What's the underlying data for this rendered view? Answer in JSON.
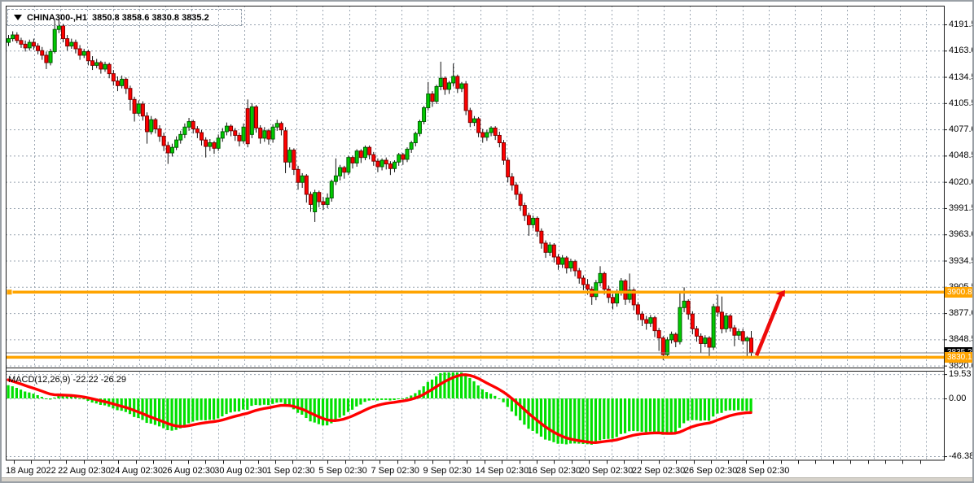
{
  "header": {
    "symbol_timeframe": "CHINA300-,H1",
    "ohlc": "3850.8 3858.6 3830.8 3835.2"
  },
  "macd_panel": {
    "label": "MACD(12,26,9)",
    "main_value": "-22.22",
    "signal_value": "-26.29"
  },
  "chart_data": {
    "type": "candlestick",
    "symbol": "CHINA300-",
    "timeframe": "H1",
    "current_bar": {
      "open": 3850.8,
      "high": 3858.6,
      "low": 3830.8,
      "close": 3835.2
    },
    "price_axis": {
      "labels": [
        "4191.5",
        "4163.0",
        "4134.5",
        "4105.5",
        "4077.0",
        "4048.5",
        "4020.0",
        "3991.5",
        "3963.0",
        "3934.5",
        "3905.5",
        "3877.0",
        "3848.5",
        "3820.0"
      ],
      "top_value": 4191.5,
      "step": 28.5
    },
    "time_axis": {
      "labels": [
        "18 Aug 2022",
        "22 Aug 02:30",
        "24 Aug 02:30",
        "26 Aug 02:30",
        "30 Aug 02:30",
        "1 Sep 02:30",
        "5 Sep 02:30",
        "7 Sep 02:30",
        "9 Sep 02:30",
        "14 Sep 02:30",
        "16 Sep 02:30",
        "20 Sep 02:30",
        "22 Sep 02:30",
        "26 Sep 02:30",
        "28 Sep 02:30"
      ]
    },
    "levels": [
      {
        "name": "resistance",
        "value": 3900.8,
        "label": "3900.8",
        "color": "#ffa400"
      },
      {
        "name": "support",
        "value": 3830.1,
        "label": "3830.1",
        "color": "#ffa400"
      }
    ],
    "last_price": {
      "value": 3835.2,
      "label": "3835.2",
      "color": "#000000"
    },
    "arrow": {
      "from_price": 3832,
      "to_price": 3903,
      "color": "#ee0b0b"
    },
    "macd": {
      "params": [
        12,
        26,
        9
      ],
      "main_value": -22.22,
      "signal_value": -26.29,
      "scale_labels": [
        "19.53",
        "0.00",
        "-46.38"
      ],
      "scale_values": [
        19.53,
        0.0,
        -46.38
      ],
      "histogram_color": "#00e000",
      "signal_color": "#ff0000"
    },
    "colors": {
      "bull": "#00cb00",
      "bull_edge": "#005f00",
      "bear": "#ff0000",
      "bear_edge": "#7e0000",
      "wick": "#111111",
      "grid": "#9aa5b1",
      "level": "#ffa400",
      "arrow": "#ee0b0b",
      "current_price_line": "#808080"
    },
    "candles": [
      [
        4172,
        4180,
        4168,
        4176
      ],
      [
        4176,
        4184,
        4173,
        4180
      ],
      [
        4180,
        4183,
        4171,
        4174
      ],
      [
        4174,
        4177,
        4166,
        4170
      ],
      [
        4170,
        4174,
        4162,
        4166
      ],
      [
        4166,
        4175,
        4163,
        4172
      ],
      [
        4172,
        4176,
        4164,
        4168
      ],
      [
        4168,
        4171,
        4159,
        4163
      ],
      [
        4163,
        4167,
        4153,
        4158
      ],
      [
        4158,
        4162,
        4143,
        4150
      ],
      [
        4150,
        4165,
        4147,
        4162
      ],
      [
        4162,
        4196,
        4160,
        4186
      ],
      [
        4186,
        4197,
        4182,
        4190
      ],
      [
        4190,
        4192,
        4172,
        4176
      ],
      [
        4176,
        4180,
        4163,
        4168
      ],
      [
        4168,
        4176,
        4165,
        4172
      ],
      [
        4172,
        4175,
        4160,
        4165
      ],
      [
        4165,
        4169,
        4153,
        4158
      ],
      [
        4158,
        4165,
        4155,
        4162
      ],
      [
        4162,
        4164,
        4147,
        4152
      ],
      [
        4152,
        4157,
        4142,
        4147
      ],
      [
        4147,
        4154,
        4144,
        4150
      ],
      [
        4150,
        4152,
        4138,
        4143
      ],
      [
        4143,
        4151,
        4140,
        4148
      ],
      [
        4148,
        4150,
        4133,
        4138
      ],
      [
        4138,
        4142,
        4125,
        4130
      ],
      [
        4130,
        4135,
        4119,
        4125
      ],
      [
        4125,
        4136,
        4122,
        4132
      ],
      [
        4132,
        4134,
        4116,
        4122
      ],
      [
        4122,
        4125,
        4098,
        4110
      ],
      [
        4110,
        4113,
        4086,
        4095
      ],
      [
        4095,
        4109,
        4092,
        4105
      ],
      [
        4105,
        4108,
        4087,
        4092
      ],
      [
        4092,
        4096,
        4062,
        4075
      ],
      [
        4075,
        4092,
        4072,
        4088
      ],
      [
        4088,
        4090,
        4073,
        4078
      ],
      [
        4078,
        4082,
        4064,
        4070
      ],
      [
        4070,
        4074,
        4054,
        4060
      ],
      [
        4060,
        4064,
        4040,
        4052
      ],
      [
        4052,
        4062,
        4048,
        4058
      ],
      [
        4058,
        4070,
        4055,
        4066
      ],
      [
        4066,
        4076,
        4062,
        4072
      ],
      [
        4072,
        4084,
        4068,
        4080
      ],
      [
        4080,
        4090,
        4076,
        4086
      ],
      [
        4086,
        4088,
        4073,
        4078
      ],
      [
        4078,
        4081,
        4068,
        4074
      ],
      [
        4074,
        4077,
        4060,
        4066
      ],
      [
        4066,
        4069,
        4047,
        4059
      ],
      [
        4059,
        4067,
        4054,
        4063
      ],
      [
        4063,
        4065,
        4051,
        4057
      ],
      [
        4057,
        4072,
        4054,
        4068
      ],
      [
        4068,
        4079,
        4064,
        4075
      ],
      [
        4075,
        4085,
        4071,
        4081
      ],
      [
        4081,
        4083,
        4070,
        4076
      ],
      [
        4076,
        4079,
        4065,
        4071
      ],
      [
        4071,
        4074,
        4059,
        4065
      ],
      [
        4065,
        4084,
        4062,
        4080
      ],
      [
        4100,
        4110,
        4058,
        4062
      ],
      [
        4072,
        4106,
        4068,
        4102
      ],
      [
        4102,
        4104,
        4074,
        4079
      ],
      [
        4079,
        4082,
        4062,
        4068
      ],
      [
        4068,
        4080,
        4064,
        4076
      ],
      [
        4076,
        4078,
        4061,
        4067
      ],
      [
        4067,
        4083,
        4063,
        4080
      ],
      [
        4080,
        4088,
        4076,
        4084
      ],
      [
        4084,
        4086,
        4071,
        4077
      ],
      [
        4076,
        4080,
        4030,
        4042
      ],
      [
        4042,
        4058,
        4036,
        4055
      ],
      [
        4055,
        4057,
        4028,
        4034
      ],
      [
        4034,
        4038,
        4012,
        4020
      ],
      [
        4020,
        4030,
        4014,
        4027
      ],
      [
        4027,
        4029,
        3998,
        4007
      ],
      [
        4007,
        4010,
        3988,
        3996
      ],
      [
        3988,
        4012,
        3977,
        4009
      ],
      [
        4009,
        4011,
        3993,
        3999
      ],
      [
        3999,
        4004,
        3990,
        3996
      ],
      [
        3996,
        4008,
        3992,
        4003
      ],
      [
        4003,
        4023,
        3999,
        4021
      ],
      [
        4021,
        4046,
        4017,
        4027
      ],
      [
        4027,
        4039,
        4022,
        4036
      ],
      [
        4036,
        4038,
        4024,
        4031
      ],
      [
        4031,
        4049,
        4028,
        4047
      ],
      [
        4047,
        4049,
        4035,
        4041
      ],
      [
        4041,
        4056,
        4037,
        4054
      ],
      [
        4054,
        4056,
        4041,
        4047
      ],
      [
        4047,
        4060,
        4044,
        4058
      ],
      [
        4058,
        4060,
        4045,
        4050
      ],
      [
        4050,
        4053,
        4038,
        4043
      ],
      [
        4043,
        4046,
        4031,
        4037
      ],
      [
        4037,
        4046,
        4033,
        4044
      ],
      [
        4044,
        4047,
        4034,
        4040
      ],
      [
        4040,
        4043,
        4028,
        4035
      ],
      [
        4035,
        4044,
        4031,
        4042
      ],
      [
        4042,
        4052,
        4038,
        4050
      ],
      [
        4050,
        4052,
        4039,
        4045
      ],
      [
        4045,
        4058,
        4042,
        4056
      ],
      [
        4056,
        4065,
        4052,
        4063
      ],
      [
        4063,
        4075,
        4059,
        4073
      ],
      [
        4073,
        4088,
        4070,
        4086
      ],
      [
        4086,
        4103,
        4083,
        4101
      ],
      [
        4101,
        4129,
        4098,
        4116
      ],
      [
        4116,
        4119,
        4102,
        4108
      ],
      [
        4108,
        4126,
        4105,
        4124
      ],
      [
        4124,
        4151,
        4120,
        4133
      ],
      [
        4133,
        4135,
        4115,
        4121
      ],
      [
        4121,
        4130,
        4116,
        4128
      ],
      [
        4128,
        4149,
        4124,
        4135
      ],
      [
        4135,
        4137,
        4117,
        4122
      ],
      [
        4122,
        4129,
        4118,
        4127
      ],
      [
        4127,
        4130,
        4093,
        4098
      ],
      [
        4098,
        4101,
        4080,
        4085
      ],
      [
        4085,
        4092,
        4081,
        4089
      ],
      [
        4089,
        4091,
        4069,
        4074
      ],
      [
        4074,
        4078,
        4063,
        4069
      ],
      [
        4069,
        4077,
        4065,
        4074
      ],
      [
        4074,
        4081,
        4070,
        4079
      ],
      [
        4079,
        4081,
        4066,
        4071
      ],
      [
        4071,
        4075,
        4058,
        4063
      ],
      [
        4063,
        4066,
        4039,
        4044
      ],
      [
        4044,
        4047,
        4020,
        4026
      ],
      [
        4026,
        4030,
        4011,
        4017
      ],
      [
        4017,
        4020,
        4001,
        4007
      ],
      [
        4007,
        4010,
        3989,
        3995
      ],
      [
        3995,
        3998,
        3978,
        3984
      ],
      [
        3984,
        3987,
        3962,
        3974
      ],
      [
        3974,
        3984,
        3970,
        3981
      ],
      [
        3981,
        3983,
        3961,
        3967
      ],
      [
        3967,
        3970,
        3948,
        3954
      ],
      [
        3954,
        3957,
        3938,
        3944
      ],
      [
        3944,
        3955,
        3940,
        3952
      ],
      [
        3952,
        3954,
        3933,
        3939
      ],
      [
        3939,
        3942,
        3925,
        3931
      ],
      [
        3931,
        3941,
        3927,
        3938
      ],
      [
        3938,
        3940,
        3921,
        3927
      ],
      [
        3927,
        3937,
        3923,
        3934
      ],
      [
        3934,
        3936,
        3918,
        3924
      ],
      [
        3924,
        3927,
        3910,
        3916
      ],
      [
        3916,
        3919,
        3903,
        3909
      ],
      [
        3909,
        3915,
        3898,
        3904
      ],
      [
        3904,
        3907,
        3887,
        3896
      ],
      [
        3896,
        3914,
        3892,
        3911
      ],
      [
        3911,
        3929,
        3907,
        3921
      ],
      [
        3921,
        3923,
        3898,
        3904
      ],
      [
        3904,
        3908,
        3889,
        3895
      ],
      [
        3895,
        3899,
        3882,
        3889
      ],
      [
        3889,
        3904,
        3885,
        3901
      ],
      [
        3901,
        3916,
        3897,
        3913
      ],
      [
        3913,
        3915,
        3887,
        3893
      ],
      [
        3893,
        3921,
        3889,
        3903
      ],
      [
        3903,
        3905,
        3881,
        3887
      ],
      [
        3887,
        3890,
        3870,
        3877
      ],
      [
        3877,
        3880,
        3864,
        3871
      ],
      [
        3871,
        3875,
        3860,
        3867
      ],
      [
        3867,
        3876,
        3863,
        3873
      ],
      [
        3873,
        3875,
        3852,
        3859
      ],
      [
        3859,
        3862,
        3837,
        3851
      ],
      [
        3851,
        3853,
        3827,
        3833
      ],
      [
        3833,
        3852,
        3830,
        3849
      ],
      [
        3849,
        3858,
        3845,
        3855
      ],
      [
        3855,
        3857,
        3841,
        3847
      ],
      [
        3847,
        3901,
        3844,
        3884
      ],
      [
        3884,
        3906,
        3879,
        3891
      ],
      [
        3891,
        3893,
        3871,
        3877
      ],
      [
        3877,
        3880,
        3855,
        3861
      ],
      [
        3861,
        3864,
        3847,
        3853
      ],
      [
        3853,
        3856,
        3835,
        3845
      ],
      [
        3845,
        3854,
        3841,
        3851
      ],
      [
        3851,
        3853,
        3831,
        3841
      ],
      [
        3841,
        3888,
        3838,
        3885
      ],
      [
        3885,
        3898,
        3874,
        3879
      ],
      [
        3879,
        3896,
        3856,
        3861
      ],
      [
        3861,
        3878,
        3857,
        3875
      ],
      [
        3875,
        3877,
        3858,
        3862
      ],
      [
        3862,
        3865,
        3842,
        3854
      ],
      [
        3854,
        3861,
        3849,
        3858
      ],
      [
        3858,
        3861,
        3844,
        3848
      ],
      [
        3848,
        3853,
        3829,
        3851
      ],
      [
        3850.8,
        3858.6,
        3830.8,
        3835.2
      ]
    ]
  }
}
